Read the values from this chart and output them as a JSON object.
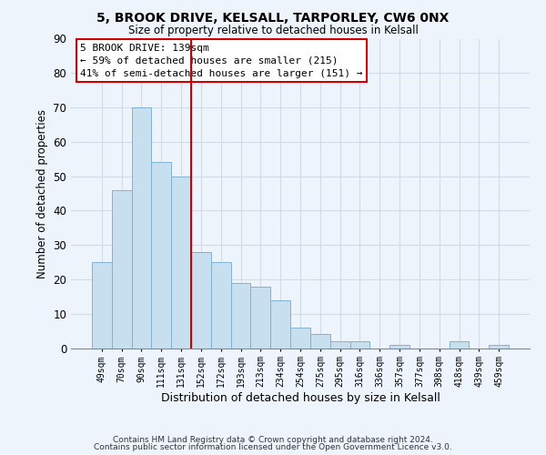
{
  "title1": "5, BROOK DRIVE, KELSALL, TARPORLEY, CW6 0NX",
  "title2": "Size of property relative to detached houses in Kelsall",
  "xlabel": "Distribution of detached houses by size in Kelsall",
  "ylabel": "Number of detached properties",
  "bar_color": "#c8dff0",
  "bar_edge_color": "#7fb3d3",
  "categories": [
    "49sqm",
    "70sqm",
    "90sqm",
    "111sqm",
    "131sqm",
    "152sqm",
    "172sqm",
    "193sqm",
    "213sqm",
    "234sqm",
    "254sqm",
    "275sqm",
    "295sqm",
    "316sqm",
    "336sqm",
    "357sqm",
    "377sqm",
    "398sqm",
    "418sqm",
    "439sqm",
    "459sqm"
  ],
  "values": [
    25,
    46,
    70,
    54,
    50,
    28,
    25,
    19,
    18,
    14,
    6,
    4,
    2,
    2,
    0,
    1,
    0,
    0,
    2,
    0,
    1
  ],
  "vline_color": "#cc0000",
  "annotation_line1": "5 BROOK DRIVE: 139sqm",
  "annotation_line2": "← 59% of detached houses are smaller (215)",
  "annotation_line3": "41% of semi-detached houses are larger (151) →",
  "box_edge_color": "#cc0000",
  "ylim": [
    0,
    90
  ],
  "yticks": [
    0,
    10,
    20,
    30,
    40,
    50,
    60,
    70,
    80,
    90
  ],
  "footer1": "Contains HM Land Registry data © Crown copyright and database right 2024.",
  "footer2": "Contains public sector information licensed under the Open Government Licence v3.0.",
  "background_color": "#eef4fb",
  "plot_bg_color": "#eef4fb",
  "grid_color": "#d0dce8"
}
